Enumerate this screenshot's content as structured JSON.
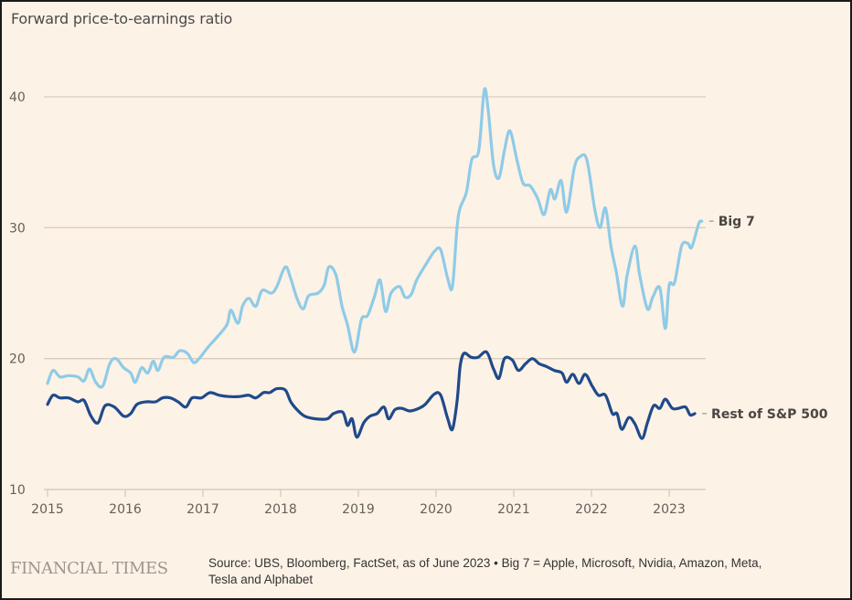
{
  "chart_data": {
    "type": "line",
    "title": "Forward price-to-earnings ratio",
    "xlabel": "",
    "ylabel": "",
    "xlim": [
      2015,
      2023.5
    ],
    "ylim": [
      10,
      40
    ],
    "grid": true,
    "x_ticks": [
      2015,
      2016,
      2017,
      2018,
      2019,
      2020,
      2021,
      2022,
      2023
    ],
    "x_tick_labels": [
      "2015",
      "2016",
      "2017",
      "2018",
      "2019",
      "2020",
      "2021",
      "2022",
      "2023"
    ],
    "y_ticks": [
      10,
      20,
      30,
      40
    ],
    "y_tick_labels": [
      "10",
      "20",
      "30",
      "40"
    ],
    "legend_placement": "inline-right",
    "series": [
      {
        "name": "Big 7",
        "color": "#8ecbe8",
        "points": [
          [
            2015.0,
            18.1
          ],
          [
            2015.07,
            19.1
          ],
          [
            2015.16,
            18.6
          ],
          [
            2015.27,
            18.7
          ],
          [
            2015.39,
            18.6
          ],
          [
            2015.47,
            18.3
          ],
          [
            2015.54,
            19.2
          ],
          [
            2015.62,
            18.2
          ],
          [
            2015.71,
            17.9
          ],
          [
            2015.8,
            19.6
          ],
          [
            2015.88,
            20.0
          ],
          [
            2015.98,
            19.3
          ],
          [
            2016.07,
            18.9
          ],
          [
            2016.13,
            18.2
          ],
          [
            2016.21,
            19.3
          ],
          [
            2016.29,
            18.9
          ],
          [
            2016.36,
            19.8
          ],
          [
            2016.42,
            19.1
          ],
          [
            2016.5,
            20.1
          ],
          [
            2016.62,
            20.1
          ],
          [
            2016.7,
            20.6
          ],
          [
            2016.8,
            20.4
          ],
          [
            2016.88,
            19.7
          ],
          [
            2016.95,
            20.0
          ],
          [
            2017.07,
            20.9
          ],
          [
            2017.19,
            21.7
          ],
          [
            2017.31,
            22.6
          ],
          [
            2017.36,
            23.7
          ],
          [
            2017.45,
            22.7
          ],
          [
            2017.51,
            24.0
          ],
          [
            2017.59,
            24.6
          ],
          [
            2017.68,
            24.0
          ],
          [
            2017.76,
            25.2
          ],
          [
            2017.88,
            25.0
          ],
          [
            2017.95,
            25.5
          ],
          [
            2018.06,
            27.0
          ],
          [
            2018.13,
            26.1
          ],
          [
            2018.21,
            24.6
          ],
          [
            2018.29,
            23.8
          ],
          [
            2018.36,
            24.8
          ],
          [
            2018.48,
            25.0
          ],
          [
            2018.56,
            25.6
          ],
          [
            2018.62,
            27.0
          ],
          [
            2018.71,
            26.4
          ],
          [
            2018.79,
            24.0
          ],
          [
            2018.86,
            22.6
          ],
          [
            2018.95,
            20.5
          ],
          [
            2019.04,
            23.0
          ],
          [
            2019.12,
            23.3
          ],
          [
            2019.21,
            24.8
          ],
          [
            2019.28,
            26.0
          ],
          [
            2019.35,
            23.6
          ],
          [
            2019.42,
            25.0
          ],
          [
            2019.53,
            25.5
          ],
          [
            2019.6,
            24.7
          ],
          [
            2019.68,
            24.9
          ],
          [
            2019.75,
            26.0
          ],
          [
            2019.87,
            27.2
          ],
          [
            2019.98,
            28.2
          ],
          [
            2020.06,
            28.3
          ],
          [
            2020.15,
            26.1
          ],
          [
            2020.21,
            25.5
          ],
          [
            2020.27,
            30.0
          ],
          [
            2020.31,
            31.5
          ],
          [
            2020.39,
            32.7
          ],
          [
            2020.46,
            35.2
          ],
          [
            2020.55,
            35.9
          ],
          [
            2020.62,
            40.5
          ],
          [
            2020.67,
            39.0
          ],
          [
            2020.74,
            34.8
          ],
          [
            2020.81,
            33.8
          ],
          [
            2020.88,
            35.9
          ],
          [
            2020.95,
            37.4
          ],
          [
            2021.04,
            35.2
          ],
          [
            2021.12,
            33.4
          ],
          [
            2021.21,
            33.2
          ],
          [
            2021.31,
            32.2
          ],
          [
            2021.39,
            31.0
          ],
          [
            2021.47,
            32.9
          ],
          [
            2021.53,
            32.2
          ],
          [
            2021.61,
            33.6
          ],
          [
            2021.68,
            31.2
          ],
          [
            2021.78,
            34.6
          ],
          [
            2021.85,
            35.4
          ],
          [
            2021.94,
            35.2
          ],
          [
            2022.04,
            31.5
          ],
          [
            2022.11,
            30.0
          ],
          [
            2022.18,
            31.5
          ],
          [
            2022.25,
            28.6
          ],
          [
            2022.32,
            26.6
          ],
          [
            2022.4,
            24.0
          ],
          [
            2022.46,
            26.4
          ],
          [
            2022.56,
            28.6
          ],
          [
            2022.62,
            26.4
          ],
          [
            2022.72,
            23.8
          ],
          [
            2022.79,
            24.7
          ],
          [
            2022.88,
            25.4
          ],
          [
            2022.95,
            22.3
          ],
          [
            2023.0,
            25.6
          ],
          [
            2023.07,
            25.8
          ],
          [
            2023.16,
            28.6
          ],
          [
            2023.24,
            28.8
          ],
          [
            2023.29,
            28.5
          ],
          [
            2023.38,
            30.3
          ],
          [
            2023.42,
            30.5
          ]
        ]
      },
      {
        "name": "Rest of S&P 500",
        "color": "#1f4a8a",
        "points": [
          [
            2015.0,
            16.5
          ],
          [
            2015.07,
            17.2
          ],
          [
            2015.16,
            17.0
          ],
          [
            2015.27,
            17.0
          ],
          [
            2015.39,
            16.7
          ],
          [
            2015.47,
            16.8
          ],
          [
            2015.56,
            15.6
          ],
          [
            2015.65,
            15.1
          ],
          [
            2015.74,
            16.4
          ],
          [
            2015.86,
            16.3
          ],
          [
            2015.98,
            15.6
          ],
          [
            2016.07,
            15.8
          ],
          [
            2016.15,
            16.5
          ],
          [
            2016.27,
            16.7
          ],
          [
            2016.39,
            16.7
          ],
          [
            2016.48,
            17.0
          ],
          [
            2016.58,
            17.0
          ],
          [
            2016.68,
            16.7
          ],
          [
            2016.78,
            16.3
          ],
          [
            2016.86,
            17.0
          ],
          [
            2016.98,
            17.0
          ],
          [
            2017.09,
            17.4
          ],
          [
            2017.21,
            17.2
          ],
          [
            2017.33,
            17.1
          ],
          [
            2017.47,
            17.1
          ],
          [
            2017.59,
            17.2
          ],
          [
            2017.68,
            17.0
          ],
          [
            2017.78,
            17.4
          ],
          [
            2017.86,
            17.4
          ],
          [
            2017.95,
            17.7
          ],
          [
            2018.06,
            17.6
          ],
          [
            2018.13,
            16.7
          ],
          [
            2018.21,
            16.1
          ],
          [
            2018.31,
            15.6
          ],
          [
            2018.45,
            15.4
          ],
          [
            2018.6,
            15.4
          ],
          [
            2018.68,
            15.8
          ],
          [
            2018.8,
            15.9
          ],
          [
            2018.86,
            14.9
          ],
          [
            2018.92,
            15.4
          ],
          [
            2018.98,
            14.0
          ],
          [
            2019.07,
            15.1
          ],
          [
            2019.15,
            15.6
          ],
          [
            2019.24,
            15.8
          ],
          [
            2019.33,
            16.3
          ],
          [
            2019.39,
            15.4
          ],
          [
            2019.47,
            16.1
          ],
          [
            2019.56,
            16.2
          ],
          [
            2019.66,
            16.0
          ],
          [
            2019.78,
            16.2
          ],
          [
            2019.86,
            16.5
          ],
          [
            2019.98,
            17.3
          ],
          [
            2020.06,
            17.2
          ],
          [
            2020.15,
            15.4
          ],
          [
            2020.21,
            14.6
          ],
          [
            2020.27,
            16.7
          ],
          [
            2020.31,
            19.4
          ],
          [
            2020.36,
            20.4
          ],
          [
            2020.45,
            20.1
          ],
          [
            2020.54,
            20.1
          ],
          [
            2020.65,
            20.5
          ],
          [
            2020.74,
            19.2
          ],
          [
            2020.81,
            18.5
          ],
          [
            2020.88,
            20.0
          ],
          [
            2020.98,
            19.9
          ],
          [
            2021.06,
            19.1
          ],
          [
            2021.15,
            19.6
          ],
          [
            2021.24,
            20.0
          ],
          [
            2021.33,
            19.6
          ],
          [
            2021.42,
            19.4
          ],
          [
            2021.52,
            19.1
          ],
          [
            2021.62,
            18.9
          ],
          [
            2021.68,
            18.2
          ],
          [
            2021.76,
            18.8
          ],
          [
            2021.84,
            18.1
          ],
          [
            2021.92,
            18.8
          ],
          [
            2022.01,
            17.9
          ],
          [
            2022.09,
            17.2
          ],
          [
            2022.18,
            17.2
          ],
          [
            2022.27,
            15.8
          ],
          [
            2022.33,
            15.8
          ],
          [
            2022.39,
            14.6
          ],
          [
            2022.48,
            15.5
          ],
          [
            2022.56,
            15.0
          ],
          [
            2022.65,
            13.9
          ],
          [
            2022.72,
            15.1
          ],
          [
            2022.8,
            16.4
          ],
          [
            2022.88,
            16.2
          ],
          [
            2022.95,
            16.9
          ],
          [
            2023.04,
            16.2
          ],
          [
            2023.12,
            16.2
          ],
          [
            2023.21,
            16.3
          ],
          [
            2023.27,
            15.7
          ],
          [
            2023.33,
            15.8
          ]
        ]
      }
    ]
  },
  "footer": {
    "logo": "FINANCIAL TIMES",
    "source_line1": "Source: UBS, Bloomberg, FactSet, as of June 2023 • Big 7 = Apple, Microsoft, Nvidia, Amazon, Meta,",
    "source_line2": "Tesla and Alphabet"
  },
  "colors": {
    "background": "#fdf2e6",
    "grid": "#d9cdc0",
    "big7": "#8ecbe8",
    "rest": "#1f4a8a"
  }
}
